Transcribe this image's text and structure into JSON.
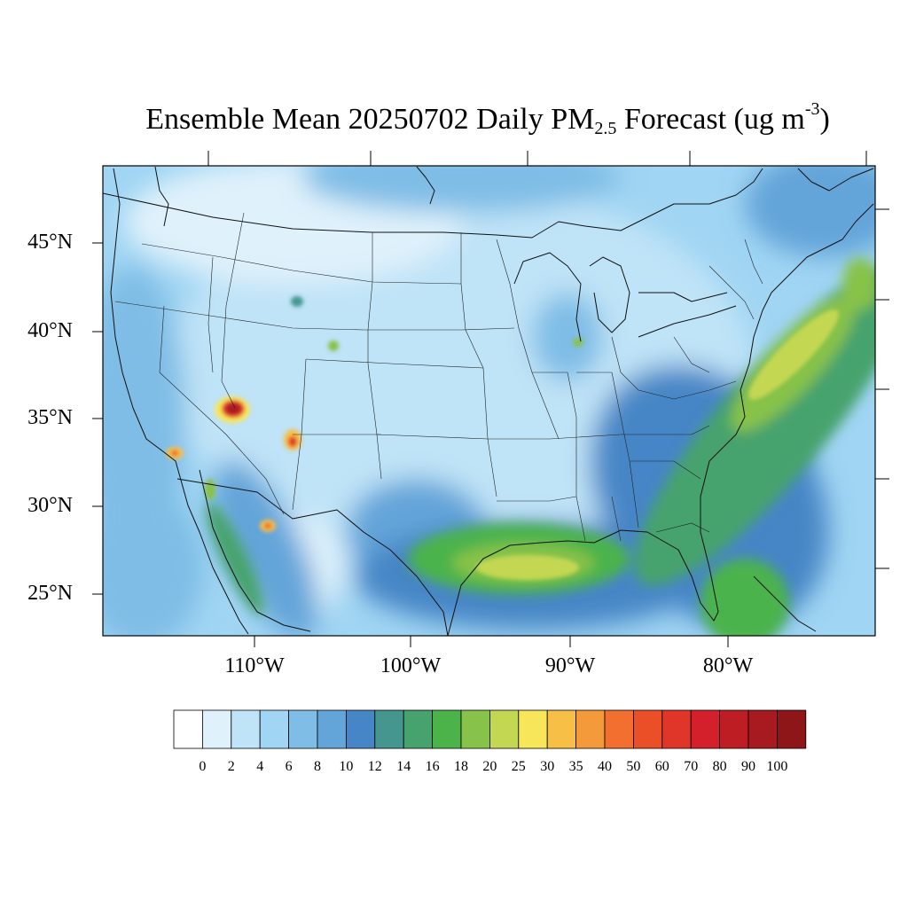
{
  "title": {
    "prefix": "Ensemble Mean 20250702 Daily PM",
    "sub": "2.5",
    "middle": " Forecast (ug m",
    "sup": "-3",
    "suffix": ")"
  },
  "map": {
    "projection": "lambert-conformal",
    "domain": "CONUS",
    "coastlines": true,
    "state_borders": true
  },
  "lat_labels": [
    "45°N",
    "40°N",
    "35°N",
    "30°N",
    "25°N"
  ],
  "lon_labels": [
    "110°W",
    "100°W",
    "90°W",
    "80°W"
  ],
  "colorbar": {
    "levels": [
      "0",
      "2",
      "4",
      "6",
      "8",
      "10",
      "12",
      "14",
      "16",
      "18",
      "20",
      "25",
      "30",
      "35",
      "40",
      "50",
      "60",
      "70",
      "80",
      "90",
      "100"
    ],
    "colors": [
      "#ffffff",
      "#dff1fb",
      "#bfe3f7",
      "#a0d5f3",
      "#7fbde6",
      "#63a4d9",
      "#4686c6",
      "#44968f",
      "#46a36d",
      "#4cb34b",
      "#87c24a",
      "#c3d753",
      "#f7e65a",
      "#f8bf47",
      "#f59a3a",
      "#f26f2f",
      "#ea4f28",
      "#e03529",
      "#d4202a",
      "#bd1d23",
      "#a71b20",
      "#8e1518"
    ]
  }
}
